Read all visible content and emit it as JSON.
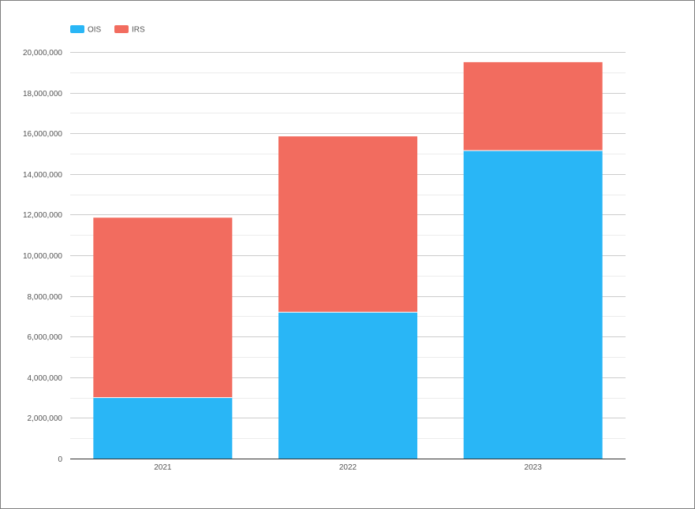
{
  "chart_data": {
    "type": "bar",
    "stacked": true,
    "categories": [
      "2021",
      "2022",
      "2023"
    ],
    "series": [
      {
        "name": "OIS",
        "color": "#29B6F6",
        "values": [
          3000000,
          7200000,
          15150000
        ]
      },
      {
        "name": "IRS",
        "color": "#F26C5F",
        "values": [
          8850000,
          8650000,
          4350000
        ]
      }
    ],
    "ylim": [
      0,
      20000000
    ],
    "yticks": [
      0,
      2000000,
      4000000,
      6000000,
      8000000,
      10000000,
      12000000,
      14000000,
      16000000,
      18000000,
      20000000
    ],
    "ytick_labels": [
      "0",
      "2,000,000",
      "4,000,000",
      "6,000,000",
      "8,000,000",
      "10,000,000",
      "12,000,000",
      "14,000,000",
      "16,000,000",
      "18,000,000",
      "20,000,000"
    ],
    "grid": true,
    "legend_position": "top-left",
    "title": "",
    "xlabel": "",
    "ylabel": ""
  }
}
